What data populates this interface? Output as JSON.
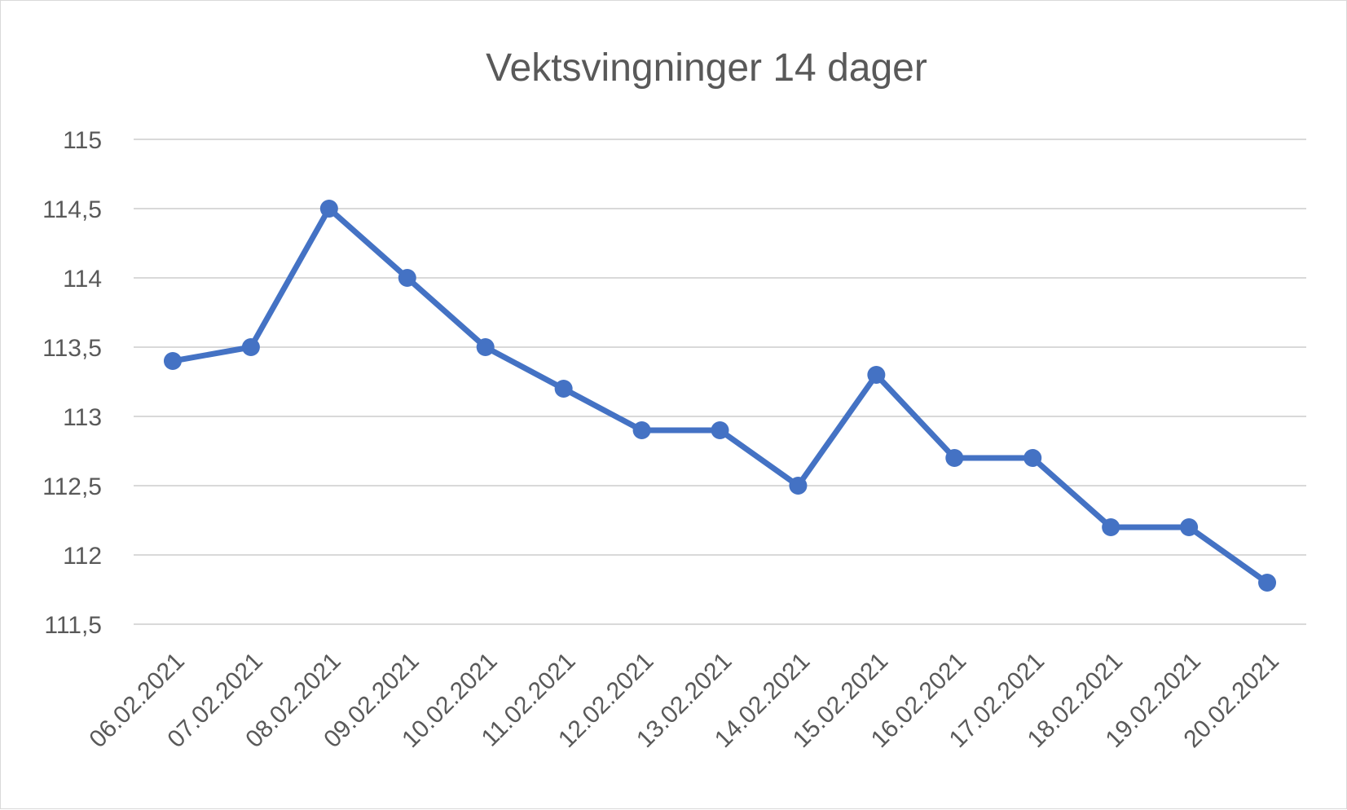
{
  "chart_data": {
    "type": "line",
    "title": "Vektsvingninger 14 dager",
    "xlabel": "",
    "ylabel": "",
    "categories": [
      "06.02.2021",
      "07.02.2021",
      "08.02.2021",
      "09.02.2021",
      "10.02.2021",
      "11.02.2021",
      "12.02.2021",
      "13.02.2021",
      "14.02.2021",
      "15.02.2021",
      "16.02.2021",
      "17.02.2021",
      "18.02.2021",
      "19.02.2021",
      "20.02.2021"
    ],
    "series": [
      {
        "values": [
          113.4,
          113.5,
          114.5,
          114.0,
          113.5,
          113.2,
          112.9,
          112.9,
          112.5,
          113.3,
          112.7,
          112.7,
          112.2,
          112.2,
          111.8
        ]
      }
    ],
    "ylim": [
      111.5,
      115
    ],
    "yticks": [
      111.5,
      112,
      112.5,
      113,
      113.5,
      114,
      114.5,
      115
    ],
    "ytick_labels": [
      "111,5",
      "112",
      "112,5",
      "113",
      "113,5",
      "114",
      "114,5",
      "115"
    ],
    "grid": true,
    "legend": "none",
    "color": "#4472c4"
  }
}
